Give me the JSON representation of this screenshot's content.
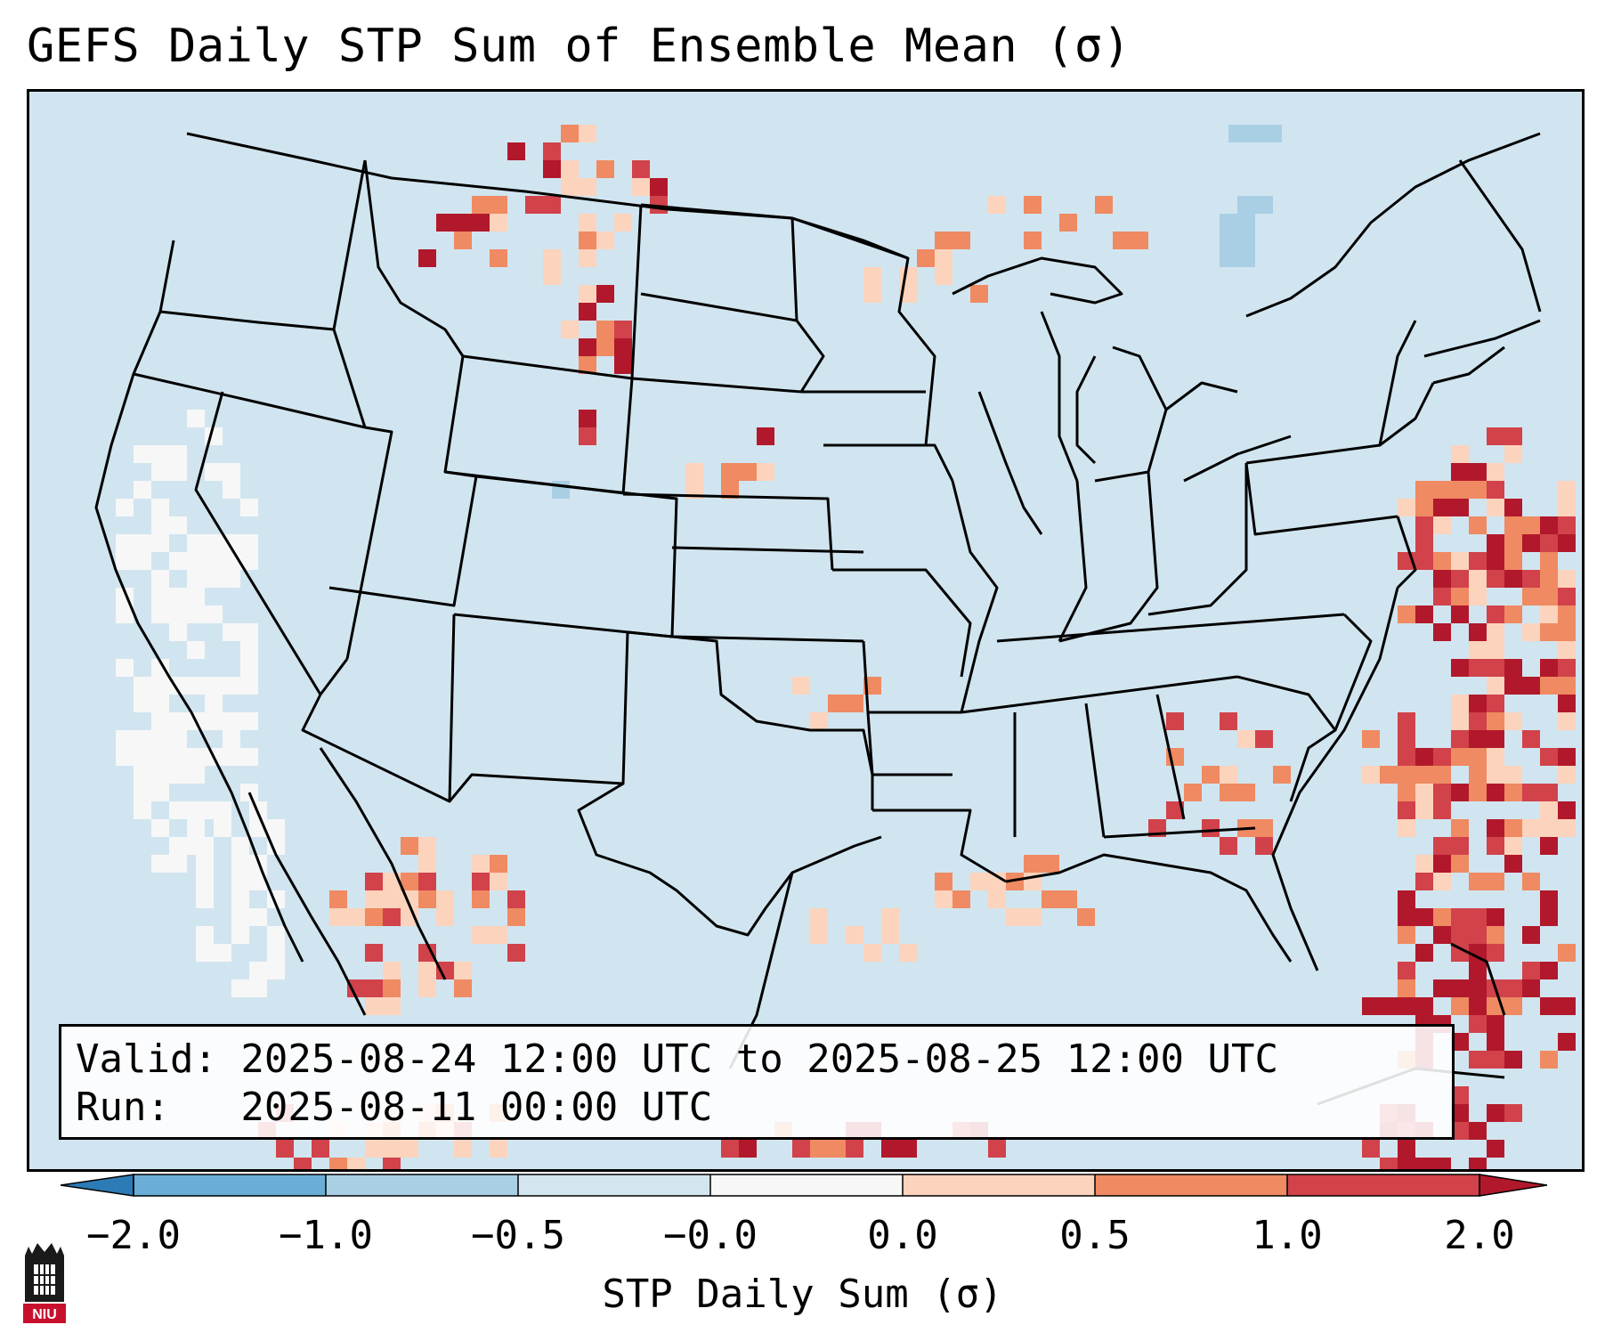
{
  "title": "GEFS Daily STP Sum of Ensemble Mean (σ)",
  "valid_line": "Valid: 2025-08-24 12:00 UTC to 2025-08-25 12:00 UTC",
  "run_line": "Run:   2025-08-11 00:00 UTC",
  "colorbar": {
    "label": "STP Daily Sum (σ)",
    "ticks": [
      "−2.0",
      "−1.0",
      "−0.5",
      "−0.0",
      "0.0",
      "0.5",
      "1.0",
      "2.0"
    ],
    "colors": [
      "#2c7bb6",
      "#6aaed6",
      "#a9cfe5",
      "#d4e5f0",
      "#f7f7f7",
      "#fcd3bc",
      "#ef8a62",
      "#d1424a",
      "#b2182b"
    ]
  },
  "map": {
    "ocean_color": "#d1e5f0",
    "regions": [
      "Washington",
      "Oregon",
      "California",
      "Idaho",
      "Nevada",
      "Montana",
      "Wyoming",
      "Utah",
      "Arizona",
      "Colorado",
      "New Mexico",
      "North Dakota",
      "South Dakota",
      "Nebraska",
      "Kansas",
      "Oklahoma",
      "Texas",
      "Minnesota",
      "Iowa",
      "Missouri",
      "Arkansas",
      "Louisiana",
      "Wisconsin",
      "Illinois",
      "Michigan",
      "Indiana",
      "Ohio",
      "Kentucky",
      "Tennessee",
      "Mississippi",
      "Alabama",
      "Georgia",
      "Florida",
      "South Carolina",
      "North Carolina",
      "Virginia",
      "West Virginia",
      "Pennsylvania",
      "New York",
      "Maine"
    ]
  },
  "logo": "NIU"
}
